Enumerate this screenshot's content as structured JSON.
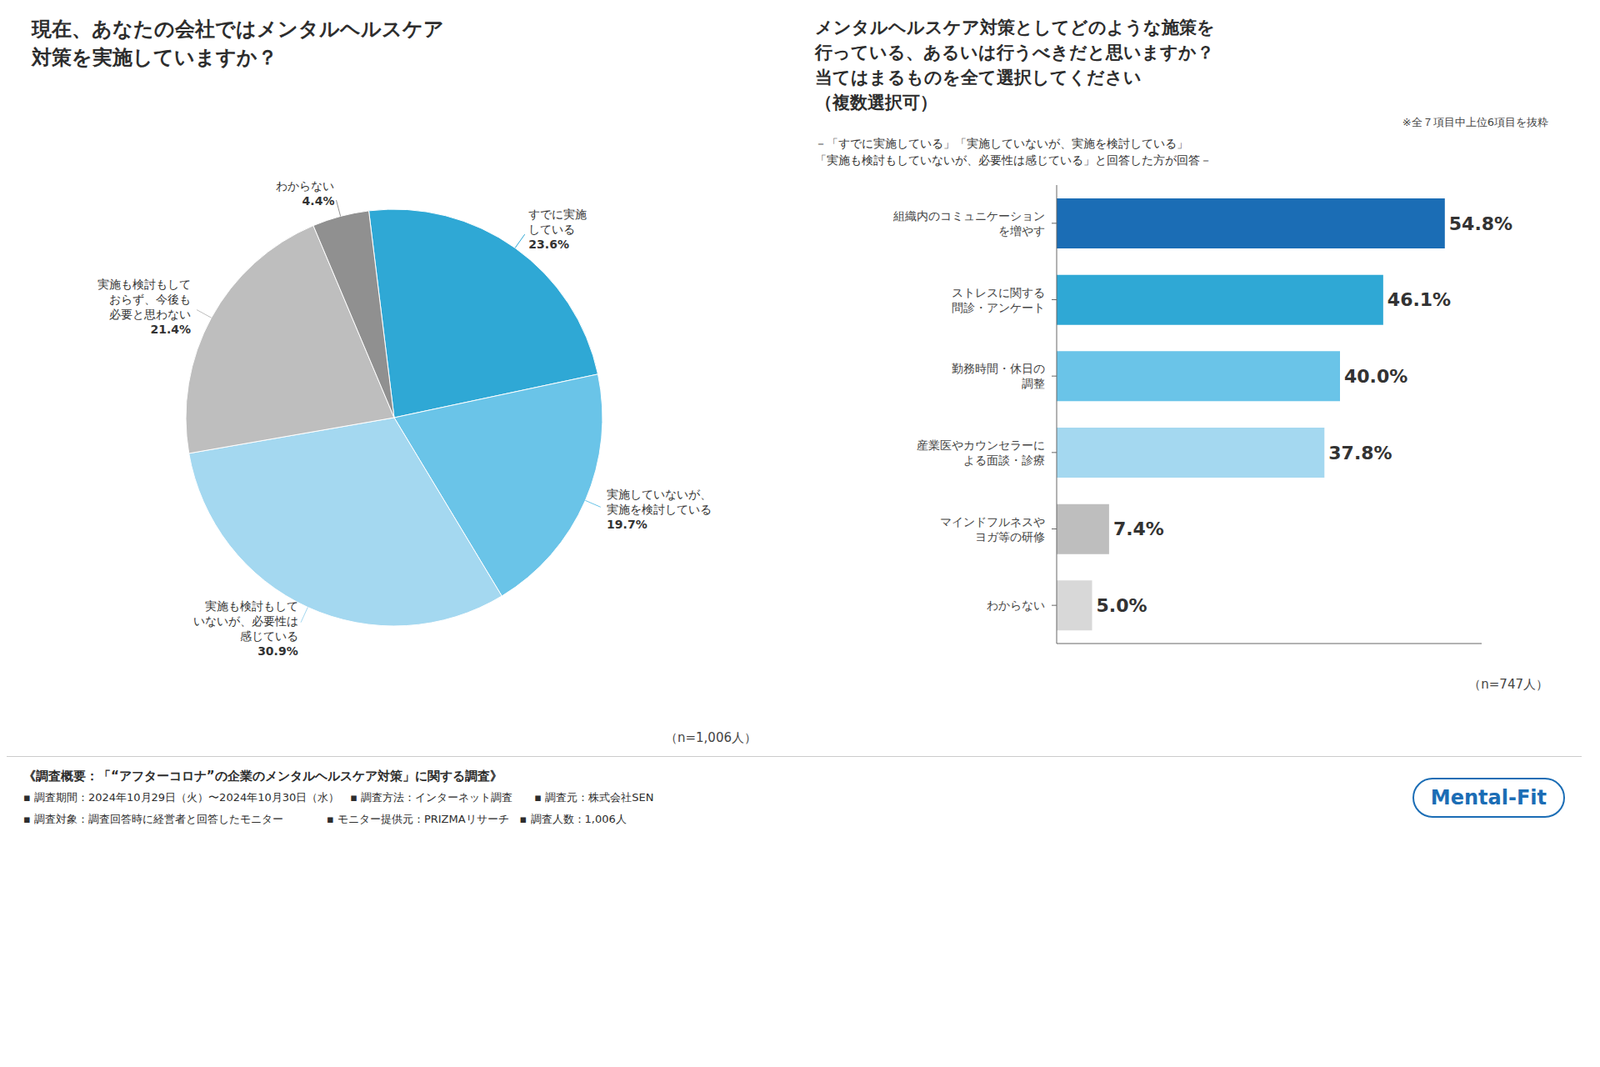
{
  "chart_data": [
    {
      "type": "pie",
      "title": "現在、あなたの会社ではメンタルヘルスケア\n対策を実施していますか？",
      "categories": [
        "すでに実施\nしている",
        "実施していないが、\n実施を検討している",
        "実施も検討もして\nいないが、必要性は\n感じている",
        "実施も検討もして\nおらず、今後も\n必要と思わない",
        "わからない"
      ],
      "values": [
        23.6,
        19.7,
        30.9,
        21.4,
        4.4
      ],
      "value_labels": [
        "23.6%",
        "19.7%",
        "30.9%",
        "21.4%",
        "4.4%"
      ],
      "data_labels": true,
      "colors": [
        "#2FA8D5",
        "#6AC4E8",
        "#A4D8F0",
        "#BEBEBE",
        "#909090"
      ],
      "annotations": [
        "（n=1,006人）",
        "《調査概要：「“アフターコロナ”の企業のメンタルヘルスケア対策」に関する調査》",
        "▪ 調査期間：2024年10月29日（火）〜2024年10月30日（水）　▪ 調査方法：インターネット調査　　▪ 調査元：株式会社SEN",
        "▪ 調査対象：調査回答時に経営者と回答したモニター　　　　▪ モニター提供元：PRIZMAリサーチ　▪ 調査人数：1,006人",
        "Mental-Fit"
      ]
    },
    {
      "type": "bar",
      "orientation": "horizontal",
      "title": "メンタルヘルスケア対策としてどのような施策を\n行っている、あるいは行うべきだと思いますか？\n当てはまるものを全て選択してください\n（複数選択可）",
      "subtitle": "－「すでに実施している」「実施していないが、実施を検討している」\n「実施も検討もしていないが、必要性は感じている」と回答した方が回答－",
      "categories": [
        "組織内のコミュニケーション\nを増やす",
        "ストレスに関する\n問診・アンケート",
        "勤務時間・休日の\n調整",
        "産業医やカウンセラーに\nよる面談・診療",
        "マインドフルネスや\nヨガ等の研修",
        "わからない"
      ],
      "values": [
        54.8,
        46.1,
        40.0,
        37.8,
        7.4,
        5.0
      ],
      "value_labels": [
        "54.8%",
        "46.1%",
        "40.0%",
        "37.8%",
        "7.4%",
        "5.0%"
      ],
      "data_labels": true,
      "colors": [
        "#1B6DB5",
        "#2FA8D5",
        "#6AC4E8",
        "#A4D8F0",
        "#BEBEBE",
        "#D8D8D8"
      ],
      "xlim": [
        0,
        60
      ],
      "xticks": [
        0,
        20,
        40,
        60
      ],
      "tick_labels": "y",
      "grid": false,
      "annotations": [
        "※全７項目中上位6項目を抜粋",
        "（n=747人）"
      ]
    }
  ]
}
